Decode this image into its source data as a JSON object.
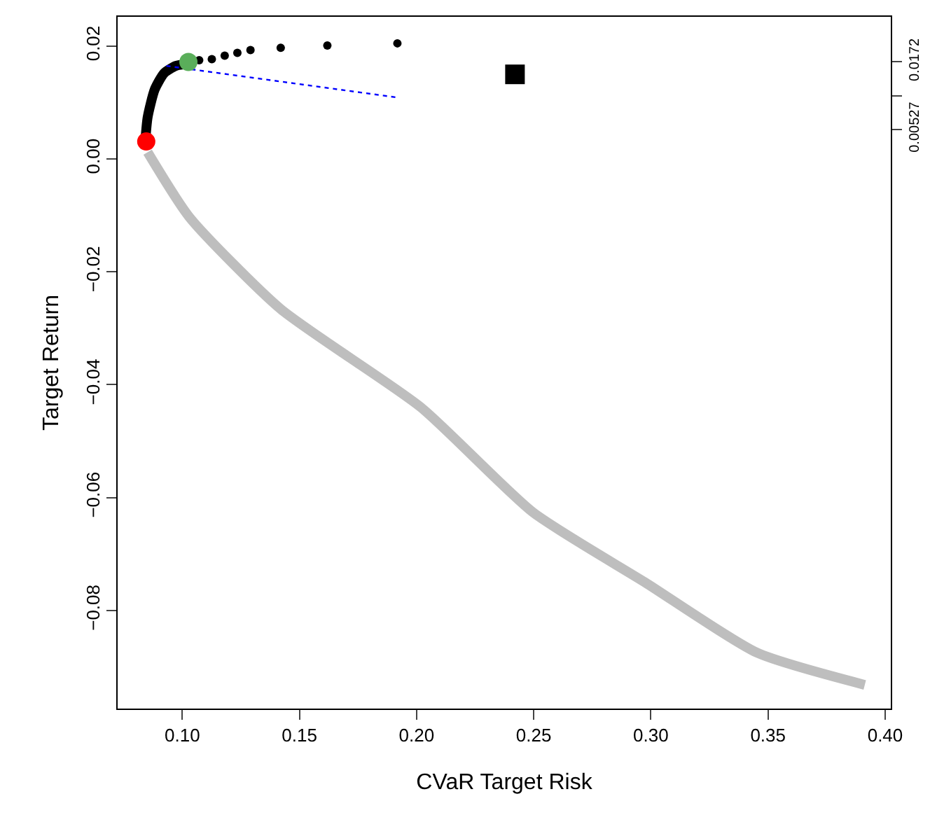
{
  "chart_data": {
    "type": "line",
    "xlabel": "CVaR Target Risk",
    "ylabel": "Target Return",
    "xlim": [
      0.0724,
      0.4024
    ],
    "xticks": [
      {
        "value": 0.1,
        "label": "0.10"
      },
      0.15,
      {
        "value": 0.2,
        "label": "0.20"
      },
      0.25,
      {
        "value": 0.3,
        "label": "0.30"
      },
      0.35,
      {
        "value": 0.4,
        "label": "0.40"
      }
    ],
    "ylim": [
      -0.0974,
      0.0252
    ],
    "yticks": [
      0.02,
      {
        "value": 0.0,
        "label": "0.00"
      },
      {
        "value": -0.02,
        "label": "−0.02"
      },
      {
        "value": -0.04,
        "label": "−0.04"
      },
      {
        "value": -0.06,
        "label": "−0.06"
      },
      {
        "value": -0.08,
        "label": "−0.08"
      }
    ],
    "y2lim": [
      -0.0974,
      0.0252
    ],
    "y2ticks": [
      {
        "value": 0.0172,
        "label": "0.0172"
      },
      {
        "value": 0.0112,
        "label": null
      },
      {
        "value": 0.00527,
        "label": "0.00527"
      }
    ],
    "series": [
      {
        "color": "#bebebe",
        "marker": "none",
        "x": [
          0.0852,
          0.1032,
          0.142,
          0.2018,
          0.2496,
          0.2974,
          0.3453,
          0.3913
        ],
        "values": [
          0.0012,
          -0.0104,
          -0.0266,
          -0.044,
          -0.0626,
          -0.075,
          -0.0875,
          -0.0932
        ]
      },
      {
        "color": "#000000",
        "marker": "none",
        "x": [
          0.0842,
          0.0852,
          0.0882,
          0.0922,
          0.0972,
          0.1032
        ],
        "values": [
          0.0032,
          0.0074,
          0.0123,
          0.0152,
          0.0165,
          0.0169
        ]
      },
      {
        "color": "#0000ff",
        "marker": "none",
        "line_style": "dotted",
        "x": [
          0.0932,
          0.1918
        ],
        "values": [
          0.0165,
          0.0109
        ]
      },
      {
        "type": "scatter",
        "color": "#000000",
        "marker": "circle",
        "x": [
          0.1072,
          0.1126,
          0.1181,
          0.1235,
          0.1291,
          0.142,
          0.1619,
          0.1918
        ],
        "values": [
          0.0175,
          0.0177,
          0.0183,
          0.0188,
          0.0193,
          0.0197,
          0.0201,
          0.0205
        ]
      },
      {
        "type": "scatter",
        "color": "#ff0000",
        "marker": "circle",
        "x": [
          0.0846
        ],
        "values": [
          0.0031
        ]
      },
      {
        "type": "scatter",
        "color": "#5aae5a",
        "marker": "circle",
        "x": [
          0.1026
        ],
        "values": [
          0.0172
        ]
      },
      {
        "type": "scatter",
        "color": "#000000",
        "marker": "square",
        "x": [
          0.242
        ],
        "values": [
          0.015
        ]
      }
    ]
  }
}
